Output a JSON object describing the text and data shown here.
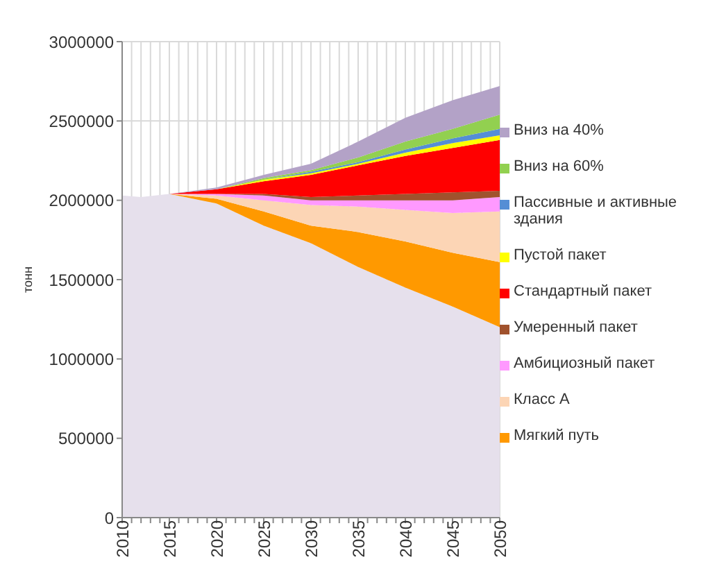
{
  "chart_data": {
    "type": "area",
    "stacked": true,
    "ylabel": "тонн",
    "x": [
      2010,
      2012,
      2015,
      2020,
      2025,
      2030,
      2035,
      2040,
      2045,
      2050
    ],
    "xlim": [
      2010,
      2050
    ],
    "xticks": [
      2010,
      {
        "value": 2011,
        "label": null
      },
      {
        "value": 2012,
        "label": null
      },
      {
        "value": 2013,
        "label": null
      },
      {
        "value": 2014,
        "label": null
      },
      2015,
      {
        "value": 2016,
        "label": null
      },
      {
        "value": 2017,
        "label": null
      },
      {
        "value": 2018,
        "label": null
      },
      {
        "value": 2019,
        "label": null
      },
      2020,
      {
        "value": 2021,
        "label": null
      },
      {
        "value": 2022,
        "label": null
      },
      {
        "value": 2023,
        "label": null
      },
      {
        "value": 2024,
        "label": null
      },
      2025,
      {
        "value": 2026,
        "label": null
      },
      {
        "value": 2027,
        "label": null
      },
      {
        "value": 2028,
        "label": null
      },
      {
        "value": 2029,
        "label": null
      },
      2030,
      {
        "value": 2031,
        "label": null
      },
      {
        "value": 2032,
        "label": null
      },
      {
        "value": 2033,
        "label": null
      },
      {
        "value": 2034,
        "label": null
      },
      2035,
      {
        "value": 2036,
        "label": null
      },
      {
        "value": 2037,
        "label": null
      },
      {
        "value": 2038,
        "label": null
      },
      {
        "value": 2039,
        "label": null
      },
      2040,
      {
        "value": 2041,
        "label": null
      },
      {
        "value": 2042,
        "label": null
      },
      {
        "value": 2043,
        "label": null
      },
      {
        "value": 2044,
        "label": null
      },
      2045,
      {
        "value": 2046,
        "label": null
      },
      {
        "value": 2047,
        "label": null
      },
      {
        "value": 2048,
        "label": null
      },
      {
        "value": 2049,
        "label": null
      },
      2050
    ],
    "ylim": [
      0,
      3000000
    ],
    "yticks": [
      0,
      500000,
      1000000,
      1500000,
      2000000,
      2500000,
      3000000
    ],
    "grid": true,
    "legend": "right",
    "series": [
      {
        "color": "#e6e0ec",
        "values": [
          2030000,
          2020000,
          2040000,
          1980000,
          1840000,
          1730000,
          1580000,
          1450000,
          1330000,
          1200000
        ]
      },
      {
        "name": "Мягкий путь",
        "color": "#ff9900",
        "values": [
          0,
          0,
          0,
          30000,
          90000,
          110000,
          220000,
          290000,
          340000,
          410000
        ]
      },
      {
        "name": "Класс А",
        "color": "#fcd5b5",
        "values": [
          0,
          0,
          0,
          20000,
          70000,
          130000,
          160000,
          200000,
          250000,
          320000
        ]
      },
      {
        "name": "Амбициозный пакет",
        "color": "#ff99ff",
        "values": [
          0,
          0,
          0,
          10000,
          30000,
          30000,
          40000,
          60000,
          80000,
          90000
        ]
      },
      {
        "name": "Умеренный пакет",
        "color": "#a0522d",
        "values": [
          0,
          0,
          0,
          0,
          10000,
          20000,
          30000,
          40000,
          50000,
          40000
        ]
      },
      {
        "name": "Стандартный пакет",
        "color": "#ff0000",
        "values": [
          0,
          0,
          0,
          30000,
          80000,
          140000,
          190000,
          240000,
          280000,
          320000
        ]
      },
      {
        "name": "Пустой пакет",
        "color": "#ffff00",
        "values": [
          0,
          0,
          0,
          0,
          10000,
          10000,
          10000,
          20000,
          30000,
          30000
        ]
      },
      {
        "name": "Пассивные и активные здания",
        "color": "#558ed5",
        "values": [
          0,
          0,
          0,
          0,
          0,
          10000,
          10000,
          20000,
          30000,
          40000
        ]
      },
      {
        "name": "Вниз на 60%",
        "color": "#92d050",
        "values": [
          0,
          0,
          0,
          0,
          10000,
          10000,
          30000,
          50000,
          60000,
          90000
        ]
      },
      {
        "name": "Вниз на 40%",
        "color": "#b3a2c7",
        "values": [
          0,
          0,
          0,
          10000,
          20000,
          40000,
          100000,
          150000,
          180000,
          180000
        ]
      }
    ]
  }
}
